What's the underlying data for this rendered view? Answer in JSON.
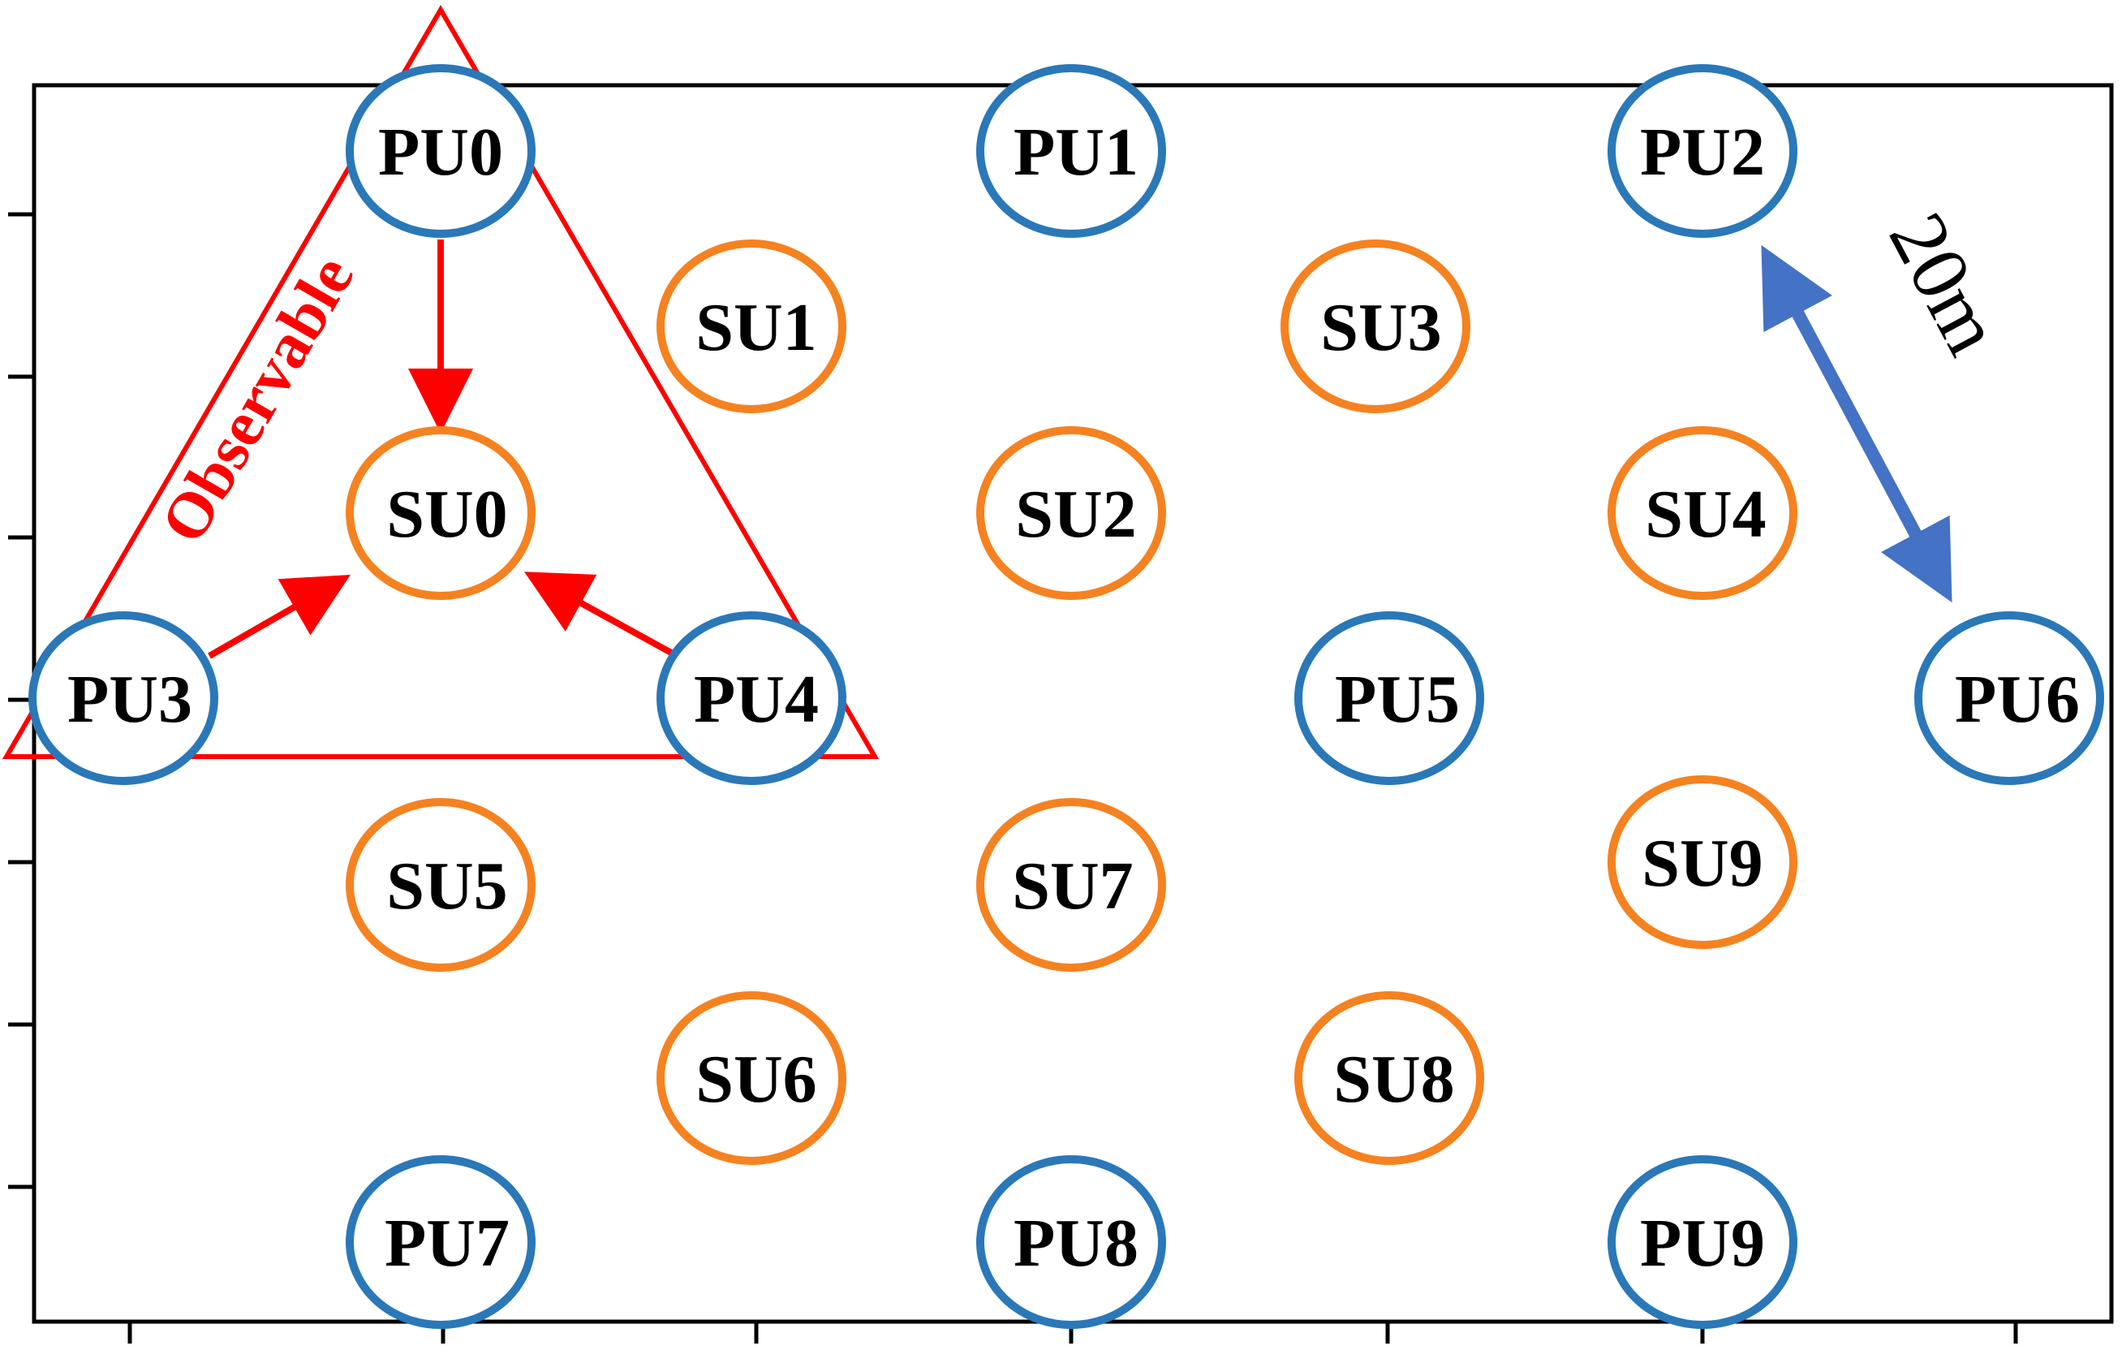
{
  "colors": {
    "pu": "#2a78b8",
    "su": "#f58220",
    "observable": "#ff0000",
    "distance_arrow": "#4472c4",
    "axes": "#000000"
  },
  "observable_region": {
    "label": "Observable"
  },
  "distance_marker": {
    "label": "20m"
  },
  "nodes": {
    "pu0": {
      "label": "PU0",
      "kind": "primary-user"
    },
    "pu1": {
      "label": "PU1",
      "kind": "primary-user"
    },
    "pu2": {
      "label": "PU2",
      "kind": "primary-user"
    },
    "pu3": {
      "label": "PU3",
      "kind": "primary-user"
    },
    "pu4": {
      "label": "PU4",
      "kind": "primary-user"
    },
    "pu5": {
      "label": "PU5",
      "kind": "primary-user"
    },
    "pu6": {
      "label": "PU6",
      "kind": "primary-user"
    },
    "pu7": {
      "label": "PU7",
      "kind": "primary-user"
    },
    "pu8": {
      "label": "PU8",
      "kind": "primary-user"
    },
    "pu9": {
      "label": "PU9",
      "kind": "primary-user"
    },
    "su0": {
      "label": "SU0",
      "kind": "secondary-user"
    },
    "su1": {
      "label": "SU1",
      "kind": "secondary-user"
    },
    "su2": {
      "label": "SU2",
      "kind": "secondary-user"
    },
    "su3": {
      "label": "SU3",
      "kind": "secondary-user"
    },
    "su4": {
      "label": "SU4",
      "kind": "secondary-user"
    },
    "su5": {
      "label": "SU5",
      "kind": "secondary-user"
    },
    "su6": {
      "label": "SU6",
      "kind": "secondary-user"
    },
    "su7": {
      "label": "SU7",
      "kind": "secondary-user"
    },
    "su8": {
      "label": "SU8",
      "kind": "secondary-user"
    },
    "su9": {
      "label": "SU9",
      "kind": "secondary-user"
    }
  },
  "edges": [
    {
      "from": "PU0",
      "to": "SU0"
    },
    {
      "from": "PU3",
      "to": "SU0"
    },
    {
      "from": "PU4",
      "to": "SU0"
    }
  ]
}
